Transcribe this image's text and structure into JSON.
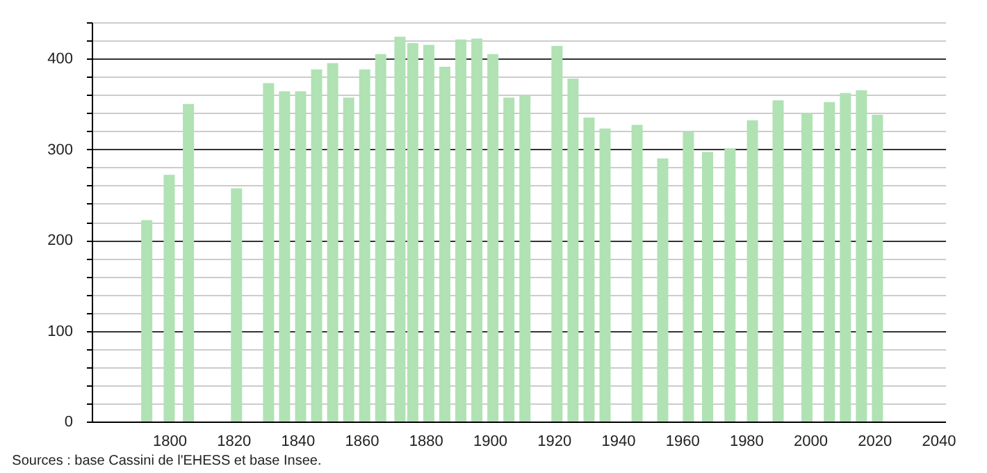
{
  "chart_data": {
    "type": "bar",
    "x": [
      1793,
      1800,
      1806,
      1821,
      1831,
      1836,
      1841,
      1846,
      1851,
      1856,
      1861,
      1866,
      1872,
      1876,
      1881,
      1886,
      1891,
      1896,
      1901,
      1906,
      1911,
      1921,
      1926,
      1931,
      1936,
      1946,
      1954,
      1962,
      1968,
      1975,
      1982,
      1990,
      1999,
      2006,
      2011,
      2016,
      2021
    ],
    "values": [
      222,
      272,
      350,
      257,
      373,
      364,
      364,
      388,
      395,
      357,
      388,
      405,
      424,
      417,
      415,
      391,
      421,
      422,
      405,
      357,
      360,
      414,
      378,
      335,
      323,
      327,
      290,
      319,
      297,
      301,
      332,
      354,
      340,
      352,
      362,
      365,
      338
    ],
    "color": "#b0e2b4",
    "xlim": [
      1778,
      2040
    ],
    "xticks": [
      1800,
      1820,
      1840,
      1860,
      1880,
      1900,
      1920,
      1940,
      1960,
      1980,
      2000,
      2020,
      2040
    ],
    "ylim": [
      0,
      440
    ],
    "yticks": [
      0,
      {
        "value": 20,
        "label": null
      },
      {
        "value": 40,
        "label": null
      },
      {
        "value": 60,
        "label": null
      },
      {
        "value": 80,
        "label": null
      },
      100,
      {
        "value": 120,
        "label": null
      },
      {
        "value": 140,
        "label": null
      },
      {
        "value": 160,
        "label": null
      },
      {
        "value": 180,
        "label": null
      },
      200,
      {
        "value": 220,
        "label": null
      },
      {
        "value": 240,
        "label": null
      },
      {
        "value": 260,
        "label": null
      },
      {
        "value": 280,
        "label": null
      },
      300,
      {
        "value": 320,
        "label": null
      },
      {
        "value": 340,
        "label": null
      },
      {
        "value": 360,
        "label": null
      },
      {
        "value": 380,
        "label": null
      },
      400,
      {
        "value": 420,
        "label": null
      },
      {
        "value": 440,
        "label": null
      }
    ],
    "grid": "y",
    "annotations": [
      "Sources : base Cassini de l'EHESS et base Insee."
    ]
  }
}
